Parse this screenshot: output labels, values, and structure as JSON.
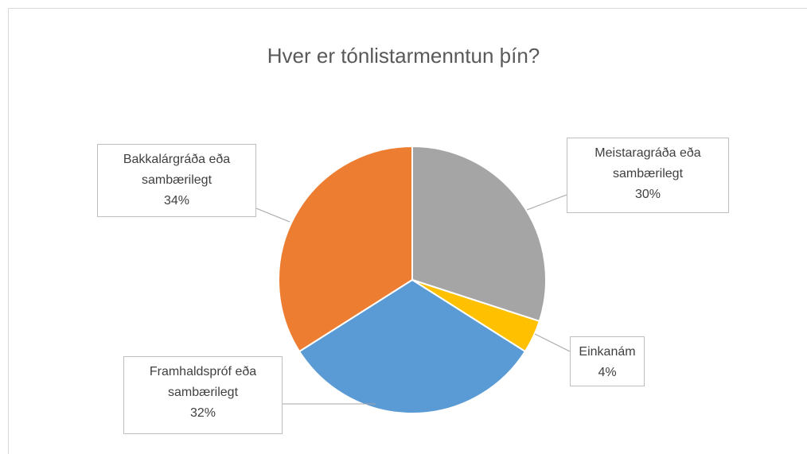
{
  "chart_data": {
    "type": "pie",
    "title": "Hver er tónlistarmenntun þín?",
    "categories": [
      "Meistaragráða eða sambærilegt",
      "Einkanám",
      "Framhaldspróf eða sambærilegt",
      "Bakkalárgráða eða sambærilegt"
    ],
    "values": [
      30,
      4,
      32,
      34
    ],
    "value_labels": [
      "30%",
      "4%",
      "32%",
      "34%"
    ],
    "colors": [
      "#a5a5a5",
      "#ffc000",
      "#5b9bd5",
      "#ed7d31"
    ]
  }
}
